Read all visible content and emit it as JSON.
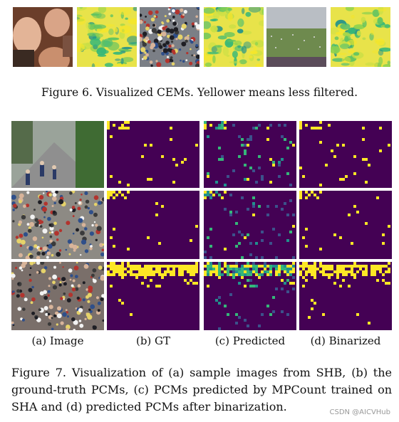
{
  "figure6": {
    "caption": "Figure 6. Visualized CEMs. Yellower means less filtered."
  },
  "figure7": {
    "caption": "Figure 7.  Visualization of (a) sample images from SHB, (b) the ground-truth PCMs, (c) PCMs predicted by MPCount trained on SHA and (d) predicted PCMs after binarization.",
    "subfigure_labels": [
      "(a) Image",
      "(b) GT",
      "(c) Predicted",
      "(d) Binarized"
    ]
  },
  "watermark": "CSDN @AICVHub",
  "colors": {
    "viridis_dark": "#440154",
    "viridis_yellow": "#fde725",
    "viridis_green": "#35b779",
    "viridis_teal": "#21918c"
  }
}
